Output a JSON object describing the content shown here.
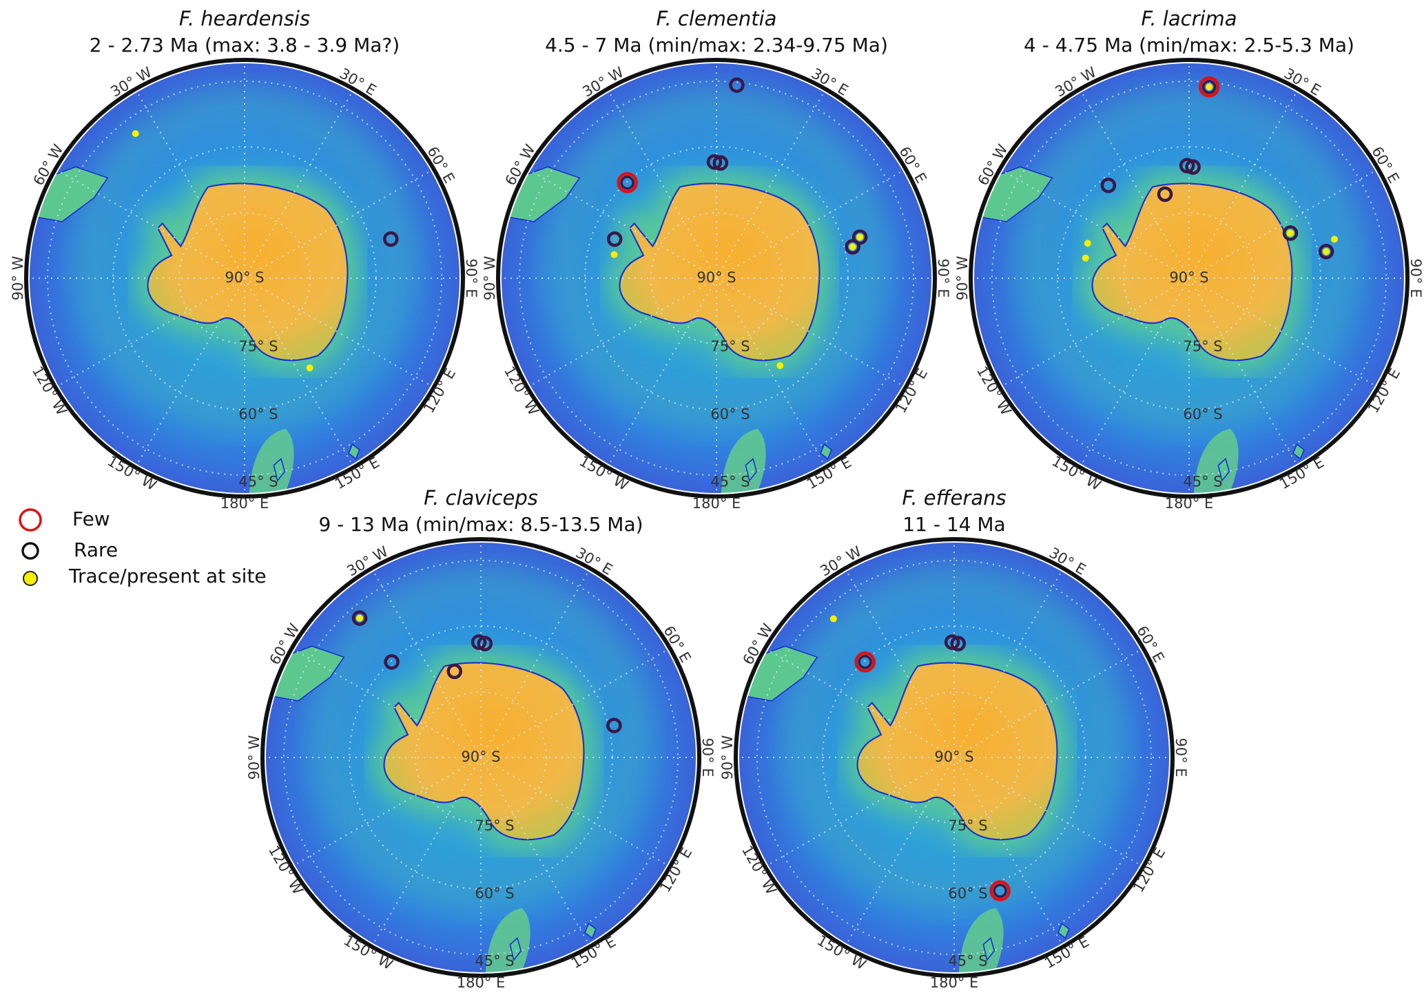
{
  "colors": {
    "few": "#e01010",
    "rare": "#3a1848",
    "trace": "#f5f000",
    "coast": "#1a2fd0",
    "land": "#f5b23c",
    "ocean": "#2f6fe0"
  },
  "legend": [
    {
      "type": "few",
      "label": "Few"
    },
    {
      "type": "rare",
      "label": "Rare"
    },
    {
      "type": "trace",
      "label": "Trace/present at site"
    }
  ],
  "grid": {
    "center_label": "90° S",
    "lat_labels": [
      {
        "lat": -75,
        "text": "75° S"
      },
      {
        "lat": -60,
        "text": "60° S"
      },
      {
        "lat": -45,
        "text": "45° S"
      }
    ],
    "lon_labels": [
      {
        "lon": 30,
        "text": "30° E"
      },
      {
        "lon": 60,
        "text": "60° E"
      },
      {
        "lon": 90,
        "text": "90° E"
      },
      {
        "lon": 120,
        "text": "120° E"
      },
      {
        "lon": 150,
        "text": "150° E"
      },
      {
        "lon": 180,
        "text": "180° E"
      },
      {
        "lon": -150,
        "text": "150° W"
      },
      {
        "lon": -120,
        "text": "120° W"
      },
      {
        "lon": -90,
        "text": "90° W"
      },
      {
        "lon": -60,
        "text": "60° W"
      },
      {
        "lon": -30,
        "text": "30° W"
      }
    ],
    "outer_lat": -42
  },
  "maps": [
    {
      "species": "F. heardensis",
      "age": "2 - 2.73 Ma (max: 3.8 - 3.9 Ma?)",
      "sites": [
        {
          "lat": -49.8,
          "lon": -37,
          "type": "trace"
        },
        {
          "lat": -56.4,
          "lon": 75,
          "type": "rare"
        },
        {
          "lat": -65.4,
          "lon": 144,
          "type": "trace"
        }
      ]
    },
    {
      "species": "F. clementia",
      "age": "4.5 - 7 Ma (min/max: 2.34-9.75 Ma)",
      "sites": [
        {
          "lat": -46.9,
          "lon": 6,
          "type": "rare"
        },
        {
          "lat": -64.2,
          "lon": -1,
          "type": "rare"
        },
        {
          "lat": -64.4,
          "lon": 2,
          "type": "rare"
        },
        {
          "lat": -61,
          "lon": -43,
          "type": "few"
        },
        {
          "lat": -65.8,
          "lon": -69,
          "type": "rare"
        },
        {
          "lat": -66.7,
          "lon": -77,
          "type": "trace"
        },
        {
          "lat": -59,
          "lon": 77,
          "type": "rare+trace"
        },
        {
          "lat": -56.9,
          "lon": 74,
          "type": "rare+trace"
        },
        {
          "lat": -66,
          "lon": 144,
          "type": "trace"
        }
      ]
    },
    {
      "species": "F. lacrima",
      "age": "4 - 4.75 Ma (min/max: 2.5-5.3 Ma)",
      "sites": [
        {
          "lat": -47.3,
          "lon": 6,
          "type": "few+trace"
        },
        {
          "lat": -65,
          "lon": -1,
          "type": "rare"
        },
        {
          "lat": -65.3,
          "lon": 2,
          "type": "rare"
        },
        {
          "lat": -62.7,
          "lon": -41,
          "type": "rare"
        },
        {
          "lat": -70.6,
          "lon": -16,
          "type": "rare"
        },
        {
          "lat": -65.4,
          "lon": 66,
          "type": "rare+trace"
        },
        {
          "lat": -59,
          "lon": 79,
          "type": "rare+trace"
        },
        {
          "lat": -56.6,
          "lon": 75,
          "type": "trace"
        },
        {
          "lat": -66.2,
          "lon": -71,
          "type": "trace"
        },
        {
          "lat": -66.6,
          "lon": -79,
          "type": "trace"
        }
      ]
    },
    {
      "species": "F. claviceps",
      "age": "9 - 13 Ma (min/max: 8.5-13.5 Ma)",
      "sites": [
        {
          "lat": -49,
          "lon": -41,
          "type": "rare+trace"
        },
        {
          "lat": -61,
          "lon": -43,
          "type": "rare"
        },
        {
          "lat": -64.4,
          "lon": -1,
          "type": "rare"
        },
        {
          "lat": -64.7,
          "lon": 2,
          "type": "rare"
        },
        {
          "lat": -70,
          "lon": -17,
          "type": "rare"
        },
        {
          "lat": -59.6,
          "lon": 76.5,
          "type": "rare"
        }
      ]
    },
    {
      "species": "F. efferans",
      "age": "11 - 14 Ma",
      "sites": [
        {
          "lat": -49.2,
          "lon": -41,
          "type": "trace"
        },
        {
          "lat": -61,
          "lon": -43,
          "type": "few"
        },
        {
          "lat": -64.4,
          "lon": -1,
          "type": "rare"
        },
        {
          "lat": -64.7,
          "lon": 2,
          "type": "rare"
        },
        {
          "lat": -58.7,
          "lon": 161,
          "type": "few"
        }
      ]
    }
  ]
}
